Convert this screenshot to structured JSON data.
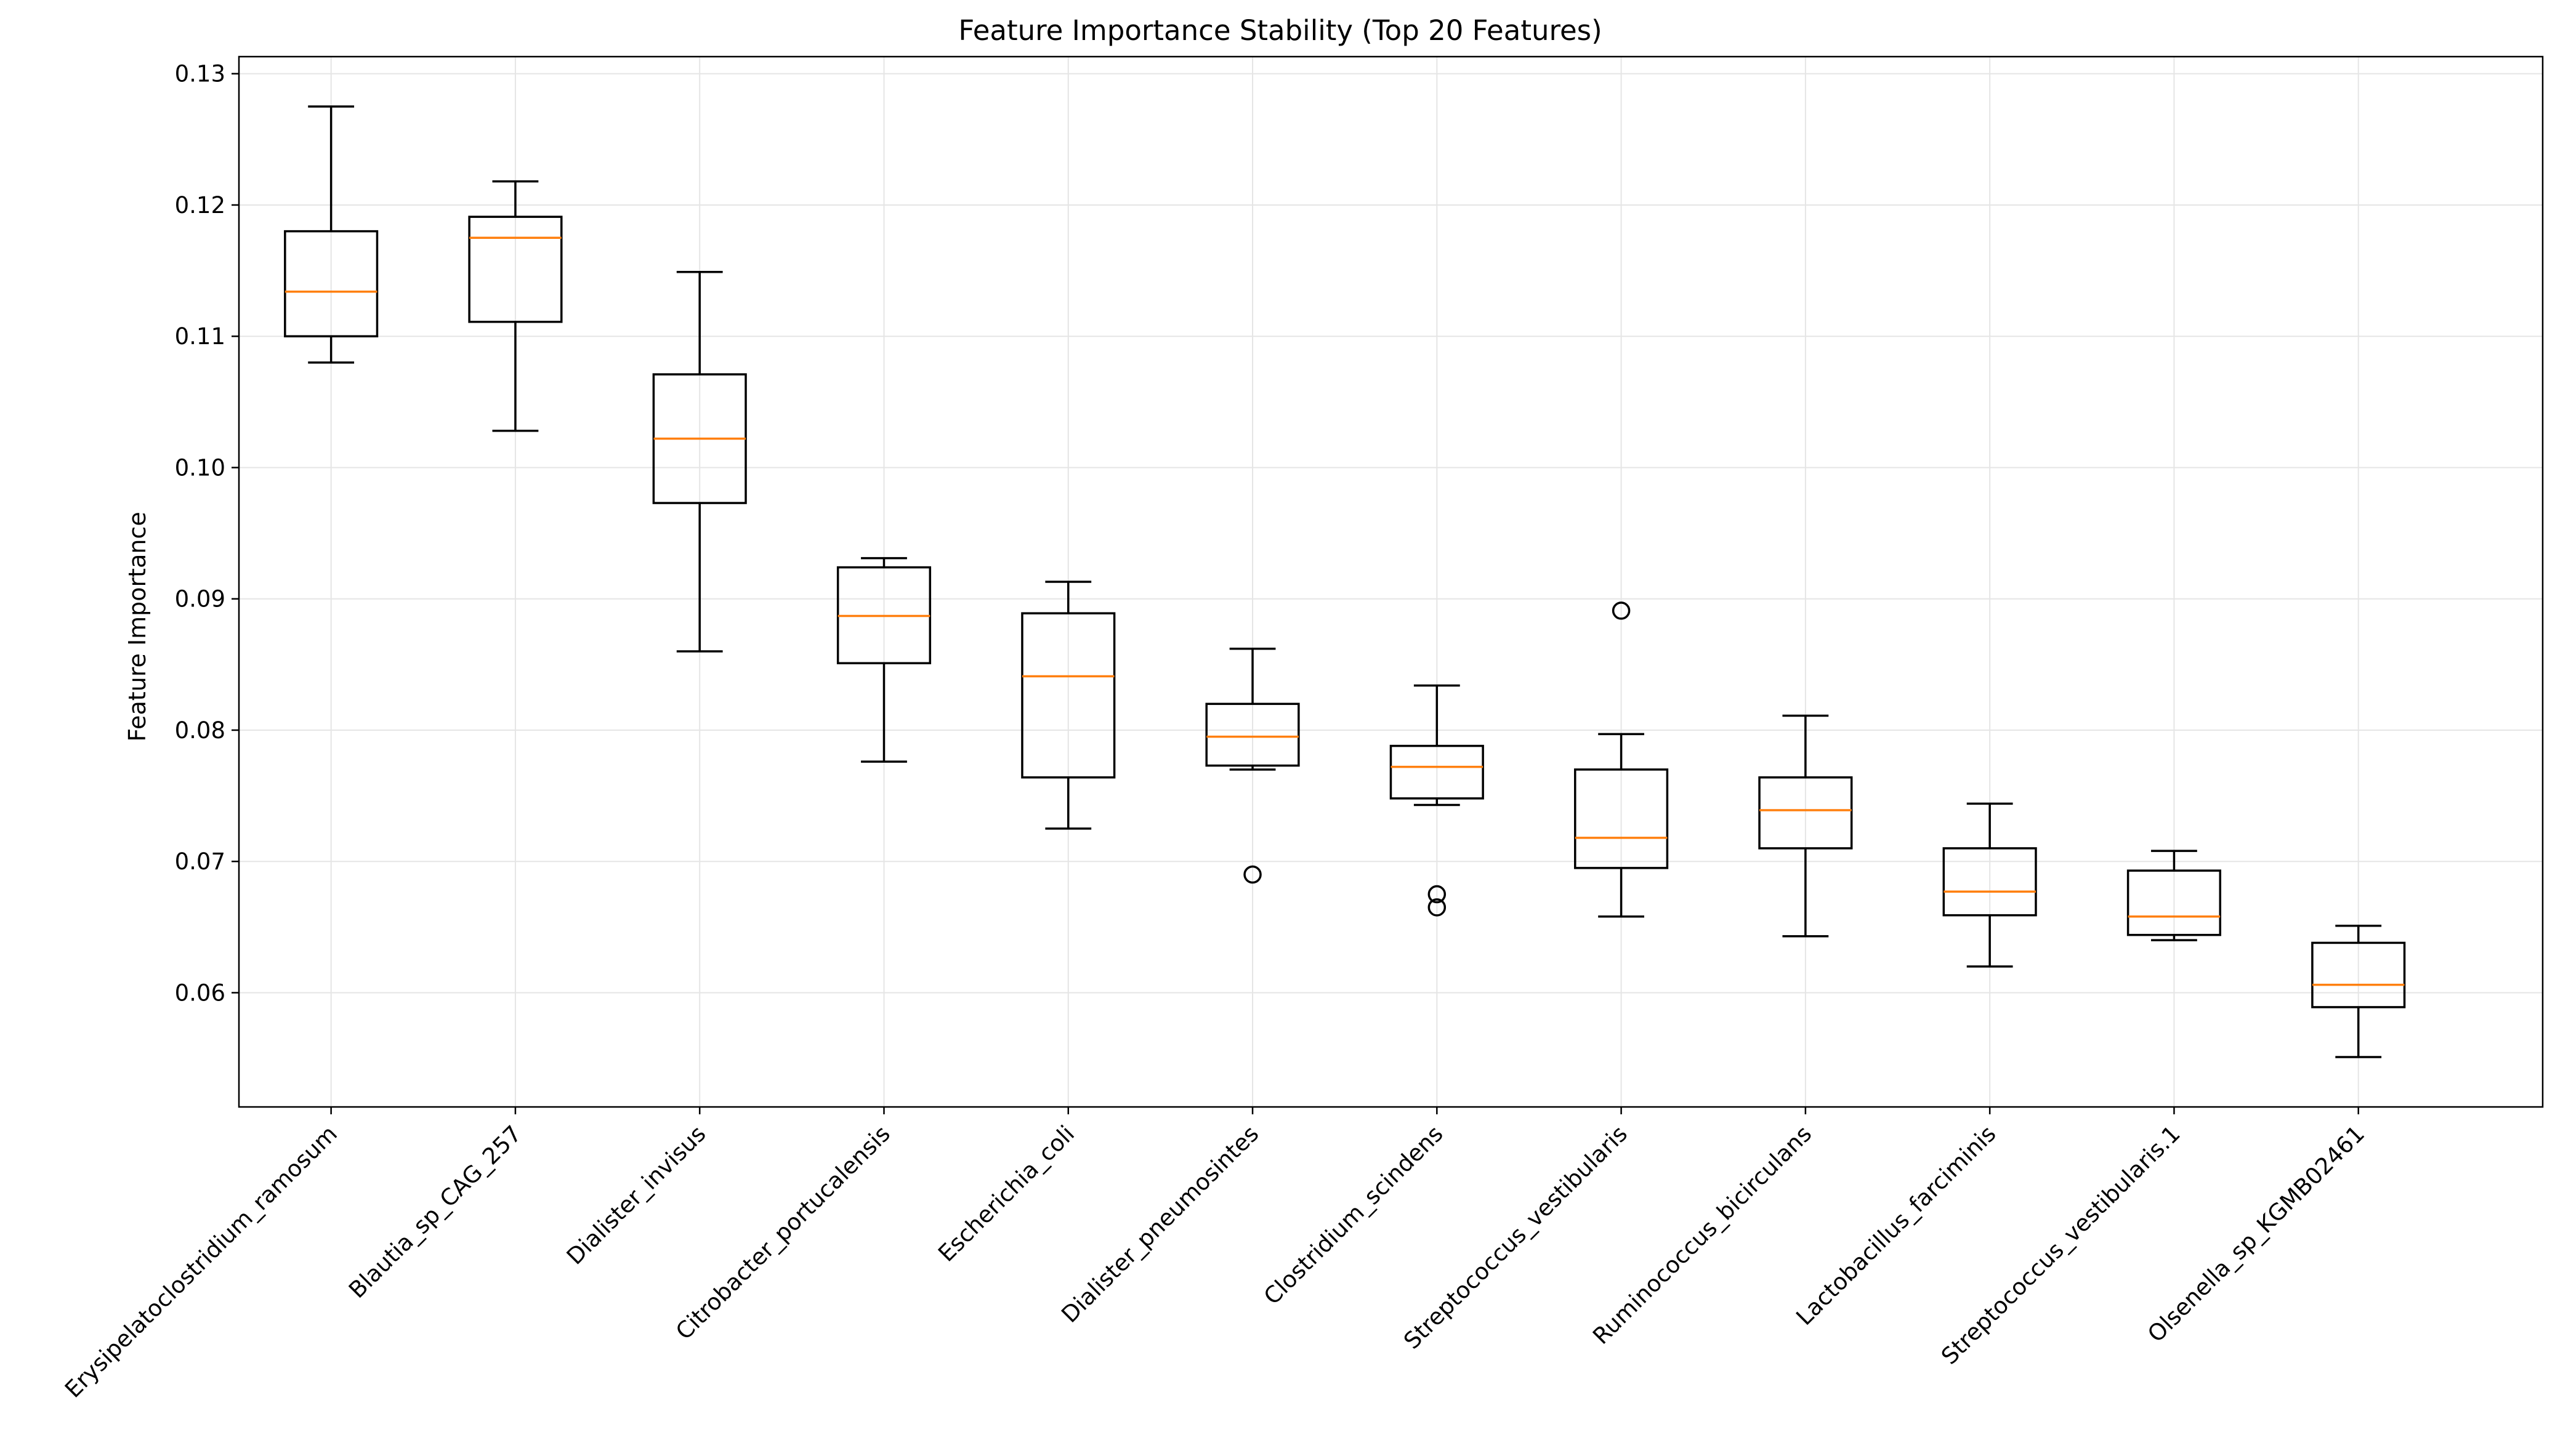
{
  "chart_data": {
    "type": "boxplot",
    "title": "Feature Importance Stability (Top 20 Features)",
    "xlabel": "",
    "ylabel": "Feature Importance",
    "ylim": [
      0.0513,
      0.1313
    ],
    "yticks": [
      0.06,
      0.07,
      0.08,
      0.09,
      0.1,
      0.11,
      0.12,
      0.13
    ],
    "ytick_labels": [
      "0.06",
      "0.07",
      "0.08",
      "0.09",
      "0.10",
      "0.11",
      "0.12",
      "0.13"
    ],
    "grid": true,
    "colors": {
      "box": "#000000",
      "median": "#ff7f0e",
      "grid": "#e5e5e5"
    },
    "categories": [
      "Erysipelatoclostridium_ramosum",
      "Blautia_sp_CAG_257",
      "Dialister_invisus",
      "Citrobacter_portucalensis",
      "Escherichia_coli",
      "Dialister_pneumosintes",
      "Clostridium_scindens",
      "Streptococcus_vestibularis",
      "Ruminococcus_bicirculans",
      "Lactobacillus_farciminis",
      "Streptococcus_vestibularis.1",
      "Olsenella_sp_KGMB02461"
    ],
    "boxes": [
      {
        "whisker_low": 0.108,
        "q1": 0.11,
        "median": 0.1134,
        "q3": 0.118,
        "whisker_high": 0.1275,
        "outliers": []
      },
      {
        "whisker_low": 0.1028,
        "q1": 0.1111,
        "median": 0.1175,
        "q3": 0.1191,
        "whisker_high": 0.1218,
        "outliers": []
      },
      {
        "whisker_low": 0.086,
        "q1": 0.0973,
        "median": 0.1022,
        "q3": 0.1071,
        "whisker_high": 0.1149,
        "outliers": []
      },
      {
        "whisker_low": 0.0776,
        "q1": 0.0851,
        "median": 0.0887,
        "q3": 0.0924,
        "whisker_high": 0.0931,
        "outliers": []
      },
      {
        "whisker_low": 0.0725,
        "q1": 0.0764,
        "median": 0.0841,
        "q3": 0.0889,
        "whisker_high": 0.0913,
        "outliers": []
      },
      {
        "whisker_low": 0.077,
        "q1": 0.0773,
        "median": 0.0795,
        "q3": 0.082,
        "whisker_high": 0.0862,
        "outliers": [
          0.069
        ]
      },
      {
        "whisker_low": 0.0743,
        "q1": 0.0748,
        "median": 0.0772,
        "q3": 0.0788,
        "whisker_high": 0.0834,
        "outliers": [
          0.0675,
          0.0665
        ]
      },
      {
        "whisker_low": 0.0658,
        "q1": 0.0695,
        "median": 0.0718,
        "q3": 0.077,
        "whisker_high": 0.0797,
        "outliers": [
          0.0891
        ]
      },
      {
        "whisker_low": 0.0643,
        "q1": 0.071,
        "median": 0.0739,
        "q3": 0.0764,
        "whisker_high": 0.0811,
        "outliers": []
      },
      {
        "whisker_low": 0.062,
        "q1": 0.0659,
        "median": 0.0677,
        "q3": 0.071,
        "whisker_high": 0.0744,
        "outliers": []
      },
      {
        "whisker_low": 0.064,
        "q1": 0.0644,
        "median": 0.0658,
        "q3": 0.0693,
        "whisker_high": 0.0708,
        "outliers": []
      },
      {
        "whisker_low": 0.0551,
        "q1": 0.0589,
        "median": 0.0606,
        "q3": 0.0638,
        "whisker_high": 0.0651,
        "outliers": []
      }
    ]
  }
}
